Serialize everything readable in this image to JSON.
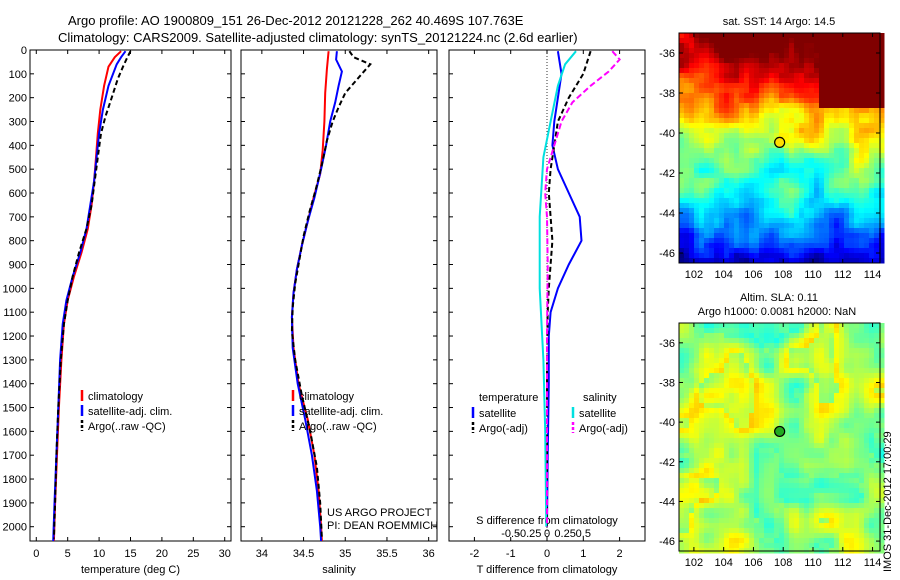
{
  "header": {
    "line1": "Argo profile: AO 1900809_151 26-Dec-2012 20121228_262 40.469S 107.763E",
    "line2": "Climatology: CARS2009. Satellite-adjusted climatology: synTS_20121224.nc (2.6d earlier)"
  },
  "side_label": "IMOS 31-Dec-2012 17:00:29",
  "chart_data": [
    {
      "id": "temperature",
      "type": "line",
      "xlabel": "temperature (deg C)",
      "ylabel": "",
      "xlim": [
        -1,
        31
      ],
      "ylim": [
        2060,
        0
      ],
      "xticks": [
        0,
        5,
        10,
        15,
        20,
        25,
        30
      ],
      "yticks": [
        0,
        100,
        200,
        300,
        400,
        500,
        600,
        700,
        800,
        900,
        1000,
        1100,
        1200,
        1300,
        1400,
        1500,
        1600,
        1700,
        1800,
        1900,
        2000
      ],
      "legend": {
        "position": "lower-center",
        "entries": [
          "climatology",
          "satellite-adj. clim.",
          "Argo(..raw -QC)"
        ]
      },
      "series": [
        {
          "name": "climatology",
          "color": "#ff0000",
          "dash": "",
          "points": [
            [
              13.5,
              5
            ],
            [
              12.5,
              30
            ],
            [
              11.5,
              70
            ],
            [
              10.8,
              150
            ],
            [
              10.2,
              250
            ],
            [
              9.8,
              350
            ],
            [
              9.5,
              450
            ],
            [
              9.2,
              550
            ],
            [
              8.8,
              650
            ],
            [
              8.2,
              750
            ],
            [
              7.2,
              850
            ],
            [
              6.0,
              950
            ],
            [
              5.0,
              1050
            ],
            [
              4.4,
              1150
            ],
            [
              4.0,
              1300
            ],
            [
              3.6,
              1500
            ],
            [
              3.3,
              1700
            ],
            [
              3.0,
              1900
            ],
            [
              2.8,
              2060
            ]
          ]
        },
        {
          "name": "satellite-adj. clim.",
          "color": "#0000ff",
          "dash": "",
          "points": [
            [
              14.2,
              5
            ],
            [
              13.5,
              30
            ],
            [
              12.8,
              60
            ],
            [
              11.5,
              150
            ],
            [
              10.6,
              250
            ],
            [
              10.0,
              350
            ],
            [
              9.6,
              450
            ],
            [
              9.2,
              550
            ],
            [
              8.6,
              650
            ],
            [
              8.0,
              750
            ],
            [
              7.0,
              850
            ],
            [
              5.8,
              950
            ],
            [
              4.8,
              1050
            ],
            [
              4.2,
              1150
            ],
            [
              3.8,
              1300
            ],
            [
              3.5,
              1500
            ],
            [
              3.2,
              1700
            ],
            [
              2.9,
              1900
            ],
            [
              2.7,
              2060
            ]
          ]
        },
        {
          "name": "Argo(..raw -QC)",
          "color": "#000000",
          "dash": "5,3",
          "points": [
            [
              15.0,
              5
            ],
            [
              14.5,
              30
            ],
            [
              13.8,
              70
            ],
            [
              13.0,
              120
            ],
            [
              12.0,
              200
            ],
            [
              11.0,
              280
            ],
            [
              10.3,
              350
            ],
            [
              9.8,
              450
            ],
            [
              9.3,
              550
            ],
            [
              8.8,
              650
            ],
            [
              8.0,
              750
            ],
            [
              6.8,
              850
            ],
            [
              5.8,
              950
            ],
            [
              5.0,
              1050
            ],
            [
              4.4,
              1150
            ],
            [
              3.9,
              1300
            ],
            [
              3.5,
              1500
            ],
            [
              3.2,
              1700
            ],
            [
              3.0,
              1900
            ],
            [
              2.8,
              2050
            ]
          ]
        }
      ]
    },
    {
      "id": "salinity",
      "type": "line",
      "xlabel": "salinity",
      "ylabel": "",
      "xlim": [
        33.75,
        36.1
      ],
      "ylim": [
        2060,
        0
      ],
      "xticks": [
        34,
        34.5,
        35,
        35.5,
        36
      ],
      "xticklabels": [
        "34",
        "34.5",
        "35",
        "35.5",
        "36"
      ],
      "legend": {
        "position": "lower-center",
        "entries": [
          "climatology",
          "satellite-adj. clim.",
          "Argo(..raw -QC)"
        ]
      },
      "annotation": [
        "US ARGO PROJECT",
        "PI: DEAN ROEMMICH"
      ],
      "series": [
        {
          "name": "climatology",
          "color": "#ff0000",
          "dash": "",
          "points": [
            [
              34.8,
              5
            ],
            [
              34.78,
              80
            ],
            [
              34.76,
              180
            ],
            [
              34.75,
              300
            ],
            [
              34.73,
              420
            ],
            [
              34.7,
              520
            ],
            [
              34.62,
              620
            ],
            [
              34.55,
              720
            ],
            [
              34.48,
              820
            ],
            [
              34.42,
              920
            ],
            [
              34.38,
              1020
            ],
            [
              34.36,
              1120
            ],
            [
              34.38,
              1250
            ],
            [
              34.44,
              1400
            ],
            [
              34.55,
              1550
            ],
            [
              34.63,
              1700
            ],
            [
              34.68,
              1850
            ],
            [
              34.71,
              2000
            ],
            [
              34.72,
              2060
            ]
          ]
        },
        {
          "name": "satellite-adj. clim.",
          "color": "#0000ff",
          "dash": "",
          "points": [
            [
              34.9,
              5
            ],
            [
              34.89,
              40
            ],
            [
              34.96,
              90
            ],
            [
              34.92,
              150
            ],
            [
              34.88,
              220
            ],
            [
              34.82,
              300
            ],
            [
              34.77,
              400
            ],
            [
              34.71,
              500
            ],
            [
              34.63,
              620
            ],
            [
              34.55,
              720
            ],
            [
              34.48,
              820
            ],
            [
              34.42,
              920
            ],
            [
              34.38,
              1020
            ],
            [
              34.36,
              1120
            ],
            [
              34.37,
              1250
            ],
            [
              34.43,
              1400
            ],
            [
              34.52,
              1550
            ],
            [
              34.6,
              1700
            ],
            [
              34.66,
              1850
            ],
            [
              34.7,
              2000
            ],
            [
              34.71,
              2060
            ]
          ]
        },
        {
          "name": "Argo(..raw -QC)",
          "color": "#000000",
          "dash": "5,3",
          "points": [
            [
              35.05,
              5
            ],
            [
              35.1,
              30
            ],
            [
              35.3,
              60
            ],
            [
              35.2,
              100
            ],
            [
              35.1,
              140
            ],
            [
              35.0,
              180
            ],
            [
              34.92,
              240
            ],
            [
              34.85,
              300
            ],
            [
              34.78,
              380
            ],
            [
              34.72,
              480
            ],
            [
              34.65,
              580
            ],
            [
              34.57,
              680
            ],
            [
              34.5,
              780
            ],
            [
              34.45,
              880
            ],
            [
              34.4,
              980
            ],
            [
              34.37,
              1080
            ],
            [
              34.36,
              1180
            ],
            [
              34.4,
              1300
            ],
            [
              34.48,
              1450
            ],
            [
              34.58,
              1600
            ],
            [
              34.66,
              1750
            ],
            [
              34.7,
              1900
            ],
            [
              34.72,
              2050
            ]
          ]
        }
      ]
    },
    {
      "id": "difference",
      "type": "line",
      "xlabel": "T difference from climatology",
      "toplabel": "S difference from climatology",
      "ylabel": "",
      "xlim": [
        -2.7,
        2.7
      ],
      "ylim": [
        2060,
        0
      ],
      "xticks": [
        -2,
        -1,
        0,
        1,
        2
      ],
      "xticklabels": [
        "-2",
        "-1",
        "0",
        "1",
        "2"
      ],
      "sticks_T": [
        -1,
        -0.5,
        0,
        0.5,
        1
      ],
      "sticklabels": [
        "-0.5",
        "-0.25",
        "0",
        "0.25",
        "0.5"
      ],
      "legend": {
        "position": "lower-center",
        "heading_left": "temperature",
        "heading_right": "salinity",
        "entries": [
          "satellite",
          "Argo(-adj)",
          "satellite",
          "Argo(-adj)"
        ]
      },
      "series": [
        {
          "name": "satellite",
          "group": "temperature",
          "color": "#0000ff",
          "dash": "",
          "points": [
            [
              0.3,
              5
            ],
            [
              0.4,
              100
            ],
            [
              0.3,
              200
            ],
            [
              0.2,
              300
            ],
            [
              0.15,
              400
            ],
            [
              0.3,
              500
            ],
            [
              0.6,
              600
            ],
            [
              0.9,
              700
            ],
            [
              0.95,
              800
            ],
            [
              0.6,
              900
            ],
            [
              0.3,
              1000
            ],
            [
              0.1,
              1100
            ],
            [
              0.05,
              1200
            ],
            [
              0.05,
              1400
            ],
            [
              0.02,
              1700
            ],
            [
              0.0,
              2000
            ]
          ]
        },
        {
          "name": "Argo(-adj)",
          "group": "temperature",
          "color": "#000000",
          "dash": "5,3",
          "points": [
            [
              1.2,
              5
            ],
            [
              1.0,
              100
            ],
            [
              0.6,
              200
            ],
            [
              0.3,
              300
            ],
            [
              0.2,
              400
            ],
            [
              0.1,
              500
            ],
            [
              0.05,
              600
            ],
            [
              0.1,
              700
            ],
            [
              0.15,
              800
            ],
            [
              0.1,
              900
            ],
            [
              0.05,
              1000
            ],
            [
              0.02,
              1100
            ],
            [
              0.0,
              1300
            ],
            [
              0.0,
              1600
            ],
            [
              0.0,
              2000
            ]
          ]
        },
        {
          "name": "satellite",
          "group": "salinity",
          "color": "#00e0e0",
          "dash": "",
          "points": [
            [
              0.8,
              5
            ],
            [
              0.5,
              60
            ],
            [
              0.3,
              150
            ],
            [
              0.1,
              300
            ],
            [
              -0.1,
              450
            ],
            [
              -0.2,
              700
            ],
            [
              -0.2,
              1000
            ],
            [
              -0.1,
              1300
            ],
            [
              -0.05,
              1600
            ],
            [
              -0.02,
              2000
            ]
          ]
        },
        {
          "name": "Argo(-adj)",
          "group": "salinity",
          "color": "#ff00ff",
          "dash": "6,3",
          "points": [
            [
              1.8,
              5
            ],
            [
              2.0,
              40
            ],
            [
              1.7,
              90
            ],
            [
              1.2,
              150
            ],
            [
              0.7,
              220
            ],
            [
              0.4,
              300
            ],
            [
              0.2,
              400
            ],
            [
              0.0,
              500
            ],
            [
              -0.05,
              600
            ],
            [
              0.0,
              700
            ],
            [
              0.02,
              900
            ],
            [
              0.0,
              1200
            ],
            [
              0.0,
              1600
            ],
            [
              0.0,
              2000
            ]
          ]
        }
      ]
    },
    {
      "id": "sst-map",
      "type": "heatmap",
      "title": "sat. SST: 14 Argo: 14.5",
      "xlim": [
        101,
        114.5
      ],
      "ylim": [
        -46.5,
        -35
      ],
      "xticks": [
        102,
        104,
        106,
        108,
        110,
        112,
        114
      ],
      "yticks": [
        -36,
        -38,
        -40,
        -42,
        -44,
        -46
      ],
      "marker": [
        107.76,
        -40.47
      ]
    },
    {
      "id": "sla-map",
      "type": "heatmap",
      "title_line1": "Altim. SLA: 0.11",
      "title_line2": "Argo h1000: 0.0081 h2000: NaN",
      "xlim": [
        101,
        114.5
      ],
      "ylim": [
        -46.5,
        -35
      ],
      "xticks": [
        102,
        104,
        106,
        108,
        110,
        112,
        114
      ],
      "yticks": [
        -36,
        -38,
        -40,
        -42,
        -44,
        -46
      ],
      "marker": [
        107.76,
        -40.47
      ]
    }
  ]
}
